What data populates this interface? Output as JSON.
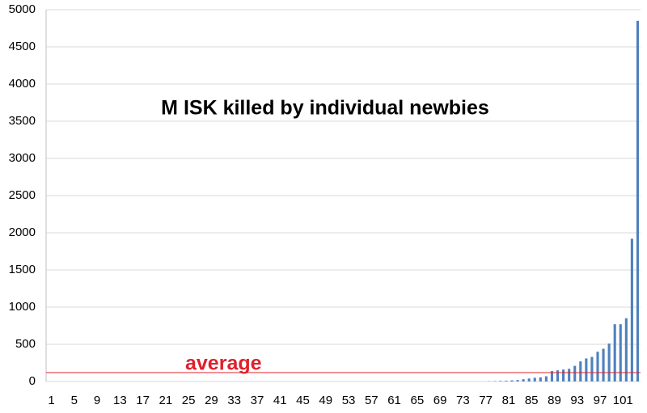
{
  "chart_data": {
    "type": "bar",
    "annotation": "M ISK killed by individual newbies",
    "categories": [
      "1",
      null,
      null,
      null,
      "5",
      null,
      null,
      null,
      "9",
      null,
      null,
      null,
      "13",
      null,
      null,
      null,
      "17",
      null,
      null,
      null,
      "21",
      null,
      null,
      null,
      "25",
      null,
      null,
      null,
      "29",
      null,
      null,
      null,
      "33",
      null,
      null,
      null,
      "37",
      null,
      null,
      null,
      "41",
      null,
      null,
      null,
      "45",
      null,
      null,
      null,
      "49",
      null,
      null,
      null,
      "53",
      null,
      null,
      null,
      "57",
      null,
      null,
      null,
      "61",
      null,
      null,
      null,
      "65",
      null,
      null,
      null,
      "69",
      null,
      null,
      null,
      "73",
      null,
      null,
      null,
      "77",
      null,
      null,
      null,
      "81",
      null,
      null,
      null,
      "85",
      null,
      null,
      null,
      "89",
      null,
      null,
      null,
      "93",
      null,
      null,
      null,
      "97",
      null,
      null,
      null,
      "101",
      null,
      null,
      null
    ],
    "values": [
      0,
      0,
      0,
      0,
      0,
      0,
      0,
      0,
      0,
      0,
      0,
      0,
      0,
      0,
      0,
      0,
      0,
      0,
      0,
      0,
      0,
      0,
      0,
      0,
      0,
      0,
      0,
      0,
      0,
      0,
      0,
      0,
      0,
      0,
      0,
      0,
      0,
      0,
      0,
      0,
      0,
      0,
      0,
      0,
      0,
      0,
      0,
      0,
      0,
      0,
      0,
      0,
      0,
      0,
      0,
      0,
      0,
      0,
      0,
      0,
      0,
      0,
      0,
      0,
      0,
      0,
      0,
      0,
      0,
      0,
      0,
      0,
      0,
      0,
      0,
      0,
      0,
      3,
      5,
      8,
      10,
      15,
      20,
      30,
      40,
      50,
      55,
      70,
      140,
      150,
      160,
      170,
      210,
      270,
      310,
      330,
      400,
      440,
      510,
      770,
      770,
      850,
      1920,
      4850
    ],
    "color": "#4f81bd",
    "average": {
      "label": "average",
      "value": 120,
      "color": "#e0202c"
    },
    "ylim": [
      0,
      5000
    ],
    "yticks": [
      0,
      500,
      1000,
      1500,
      2000,
      2500,
      3000,
      3500,
      4000,
      4500,
      5000
    ],
    "grid": true
  }
}
